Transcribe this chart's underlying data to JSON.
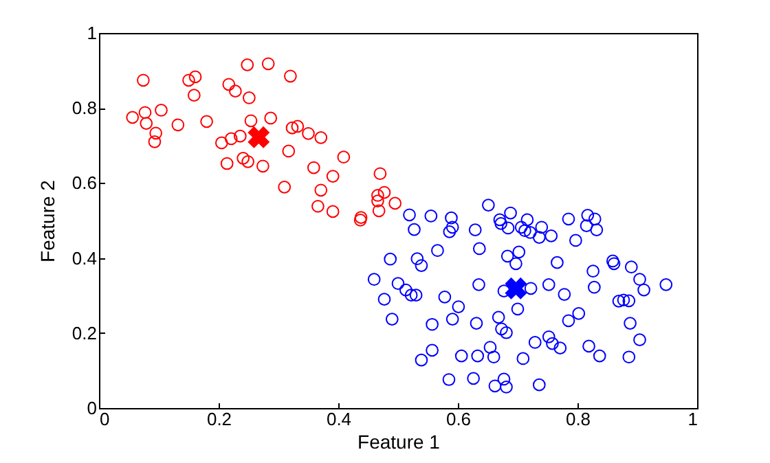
{
  "chart_data": {
    "type": "scatter",
    "xlabel": "Feature 1",
    "ylabel": "Feature 2",
    "xlim": [
      0,
      1
    ],
    "ylim": [
      0,
      1
    ],
    "xticks": [
      0,
      0.2,
      0.4,
      0.6,
      0.8,
      1
    ],
    "yticks": [
      0,
      0.2,
      0.4,
      0.6,
      0.8,
      1
    ],
    "series": [
      {
        "color": "#ff0000",
        "marker": "circle",
        "x": [
          0.074,
          0.056,
          0.077,
          0.079,
          0.104,
          0.095,
          0.093,
          0.132,
          0.15,
          0.161,
          0.159,
          0.18,
          0.217,
          0.228,
          0.248,
          0.283,
          0.32,
          0.251,
          0.254,
          0.287,
          0.205,
          0.221,
          0.236,
          0.214,
          0.241,
          0.249,
          0.274,
          0.317,
          0.323,
          0.332,
          0.35,
          0.371,
          0.31,
          0.359,
          0.391,
          0.409,
          0.371,
          0.366,
          0.391,
          0.47,
          0.477,
          0.466,
          0.466,
          0.495,
          0.468,
          0.438,
          0.437
        ],
        "values": [
          0.874,
          0.775,
          0.788,
          0.759,
          0.794,
          0.733,
          0.71,
          0.755,
          0.874,
          0.883,
          0.834,
          0.764,
          0.863,
          0.845,
          0.915,
          0.918,
          0.885,
          0.827,
          0.766,
          0.773,
          0.707,
          0.718,
          0.725,
          0.652,
          0.666,
          0.657,
          0.645,
          0.685,
          0.747,
          0.751,
          0.732,
          0.721,
          0.589,
          0.641,
          0.618,
          0.669,
          0.581,
          0.538,
          0.524,
          0.625,
          0.575,
          0.567,
          0.552,
          0.546,
          0.526,
          0.508,
          0.501
        ]
      },
      {
        "color": "#0000ff",
        "marker": "circle",
        "x": [
          0.519,
          0.555,
          0.527,
          0.589,
          0.591,
          0.586,
          0.629,
          0.651,
          0.67,
          0.672,
          0.688,
          0.684,
          0.716,
          0.706,
          0.712,
          0.721,
          0.74,
          0.736,
          0.756,
          0.785,
          0.817,
          0.829,
          0.815,
          0.832,
          0.797,
          0.566,
          0.636,
          0.702,
          0.683,
          0.697,
          0.487,
          0.532,
          0.539,
          0.766,
          0.859,
          0.861,
          0.89,
          0.826,
          0.46,
          0.5,
          0.513,
          0.522,
          0.53,
          0.635,
          0.578,
          0.477,
          0.601,
          0.722,
          0.677,
          0.752,
          0.778,
          0.828,
          0.904,
          0.911,
          0.948,
          0.869,
          0.877,
          0.886,
          0.7,
          0.49,
          0.557,
          0.591,
          0.631,
          0.668,
          0.673,
          0.681,
          0.785,
          0.802,
          0.888,
          0.904,
          0.557,
          0.539,
          0.606,
          0.633,
          0.654,
          0.66,
          0.709,
          0.729,
          0.752,
          0.758,
          0.771,
          0.819,
          0.837,
          0.886,
          0.585,
          0.626,
          0.662,
          0.677,
          0.681,
          0.736
        ],
        "values": [
          0.515,
          0.512,
          0.476,
          0.507,
          0.482,
          0.47,
          0.475,
          0.541,
          0.502,
          0.492,
          0.52,
          0.48,
          0.502,
          0.482,
          0.473,
          0.468,
          0.482,
          0.455,
          0.459,
          0.504,
          0.514,
          0.504,
          0.486,
          0.475,
          0.447,
          0.42,
          0.425,
          0.416,
          0.405,
          0.385,
          0.397,
          0.398,
          0.38,
          0.388,
          0.392,
          0.385,
          0.376,
          0.365,
          0.343,
          0.332,
          0.315,
          0.301,
          0.301,
          0.329,
          0.296,
          0.29,
          0.27,
          0.319,
          0.312,
          0.329,
          0.303,
          0.322,
          0.343,
          0.315,
          0.329,
          0.285,
          0.288,
          0.286,
          0.264,
          0.237,
          0.223,
          0.237,
          0.226,
          0.242,
          0.211,
          0.201,
          0.233,
          0.252,
          0.226,
          0.182,
          0.154,
          0.128,
          0.139,
          0.139,
          0.162,
          0.136,
          0.132,
          0.175,
          0.19,
          0.172,
          0.16,
          0.165,
          0.139,
          0.136,
          0.076,
          0.079,
          0.059,
          0.077,
          0.056,
          0.062
        ]
      },
      {
        "color": "#ff0000",
        "marker": "cross",
        "x": [
          0.267
        ],
        "values": [
          0.722
        ]
      },
      {
        "color": "#0000ff",
        "marker": "cross",
        "x": [
          0.697
        ],
        "values": [
          0.319
        ]
      }
    ]
  }
}
